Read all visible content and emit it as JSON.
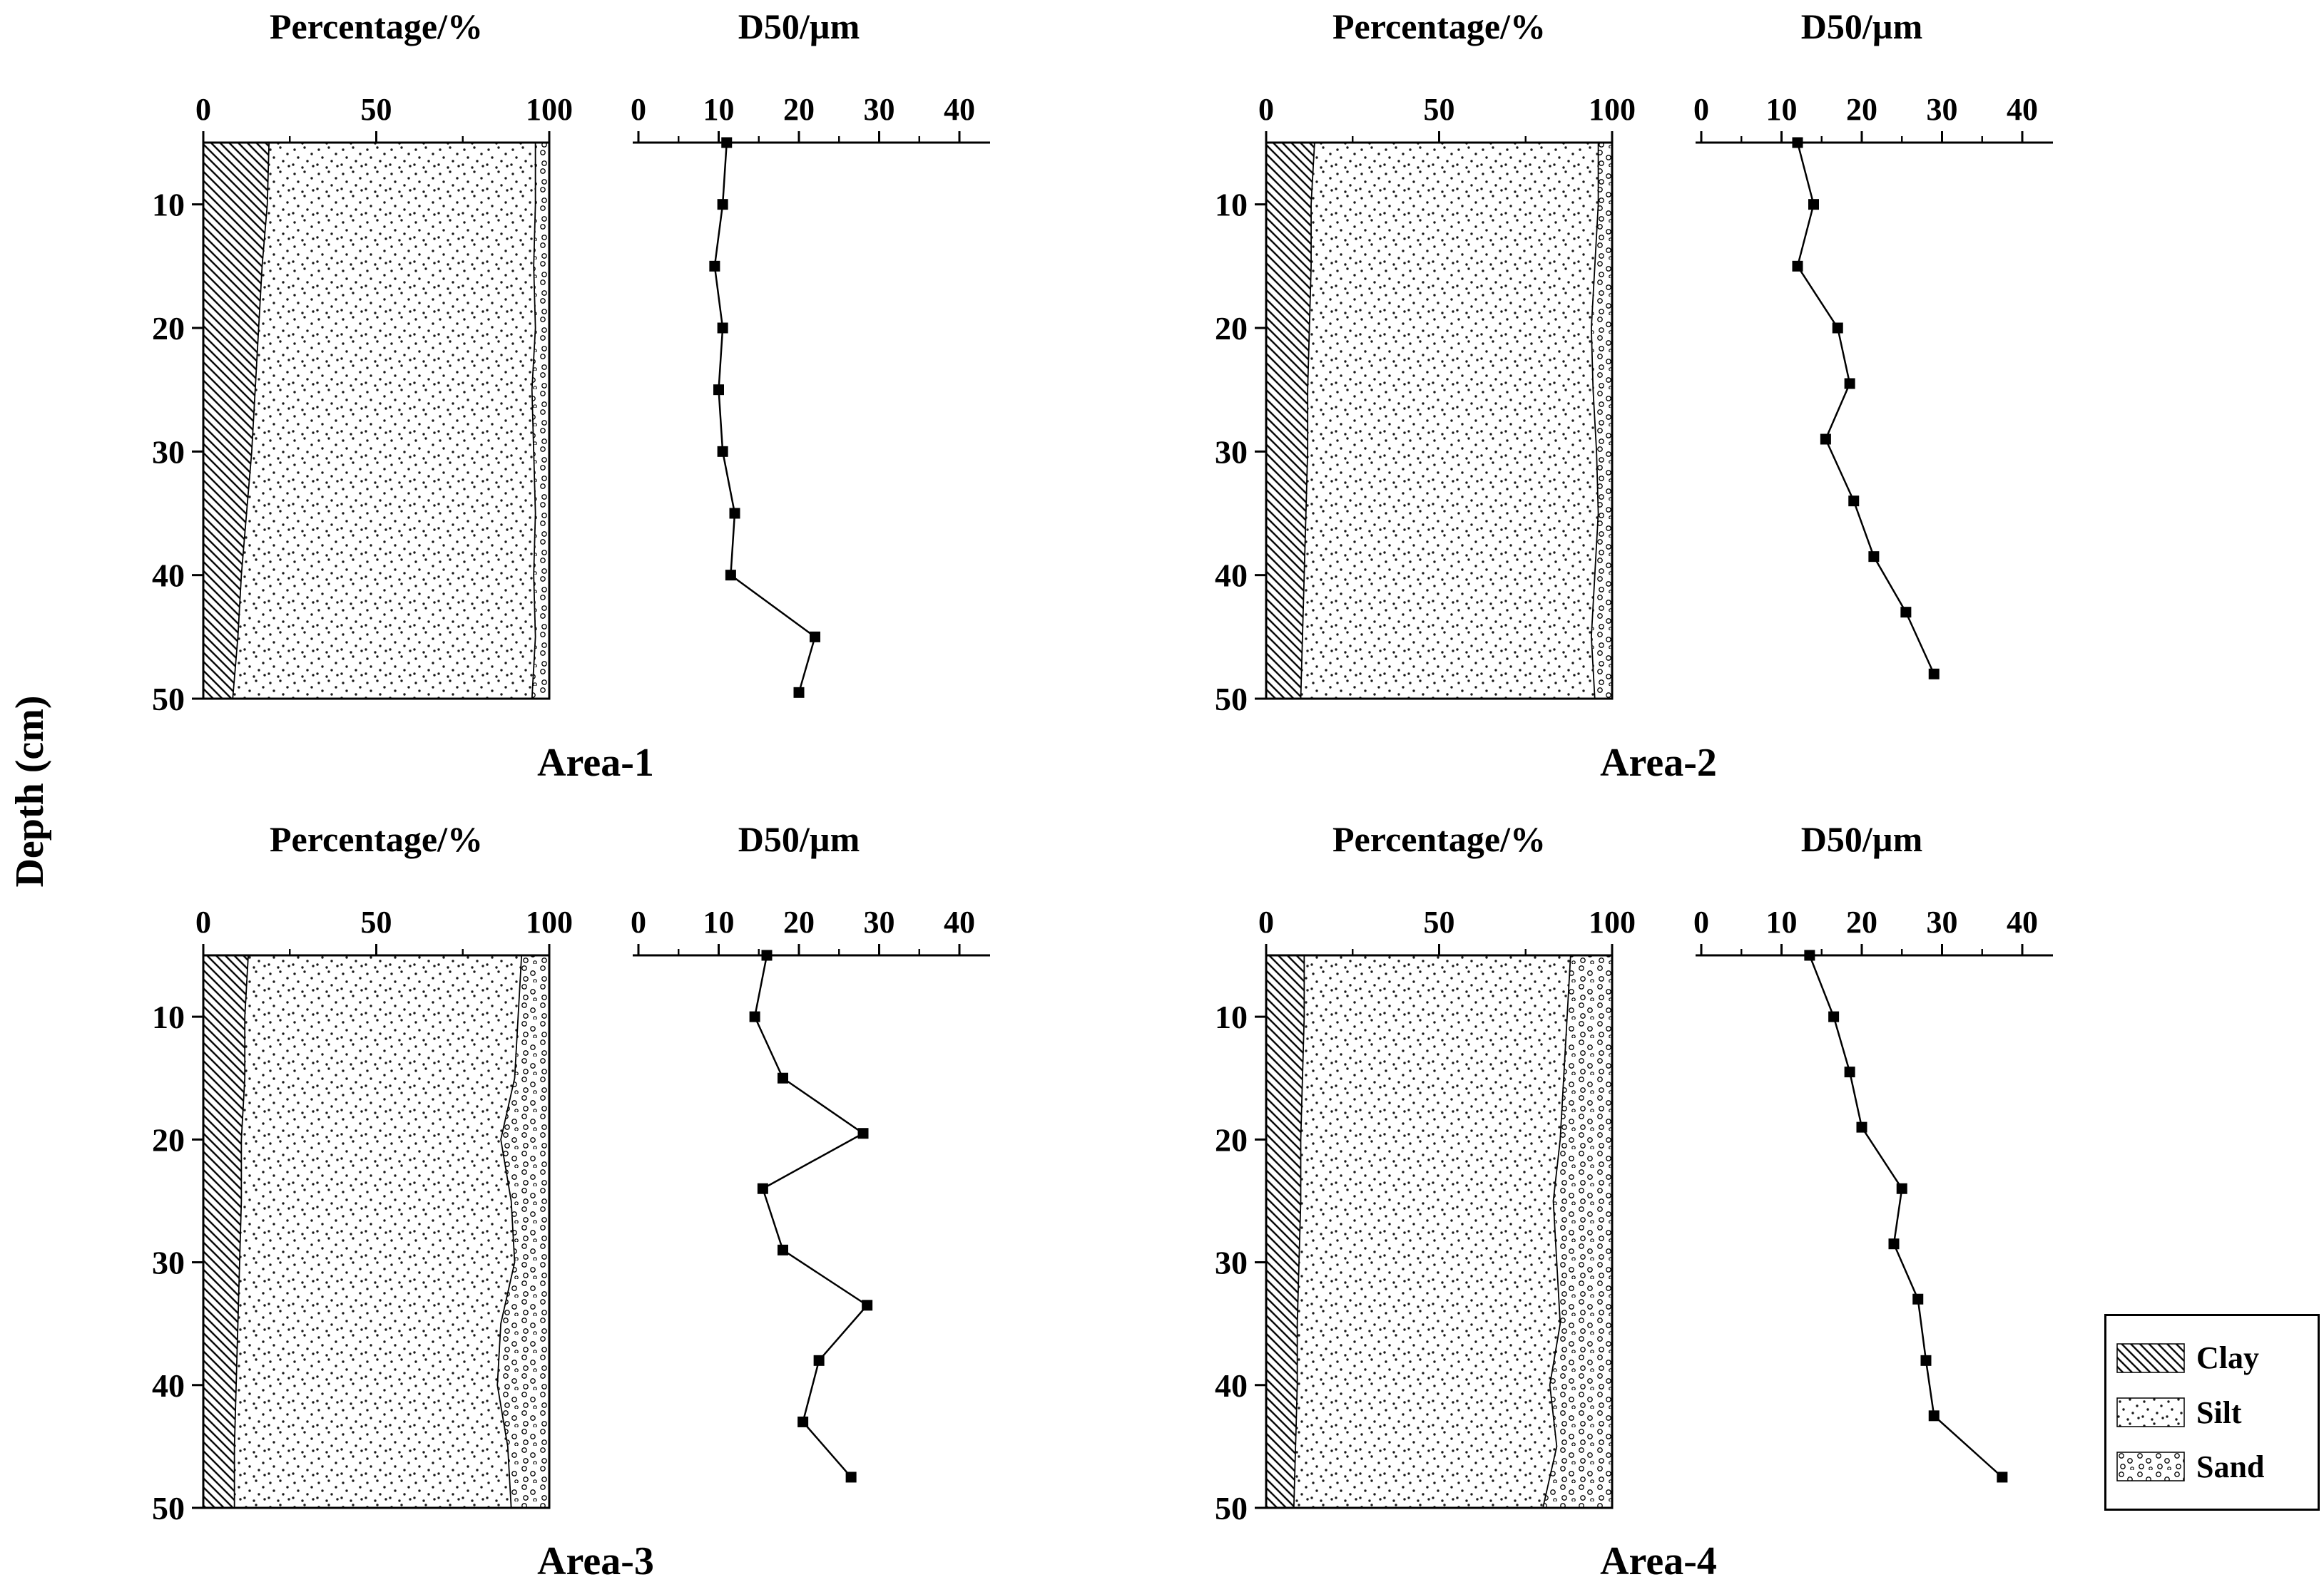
{
  "figure": {
    "depth_axis_label": "Depth (cm)",
    "depth_ticks": [
      10,
      20,
      30,
      40,
      50
    ],
    "depth_range_cm": [
      5,
      50
    ],
    "percentage_title": "Percentage/%",
    "percentage_major_ticks": [
      0,
      50,
      100
    ],
    "percentage_minor_ticks": [
      25,
      75
    ],
    "percentage_range": [
      0,
      100
    ],
    "d50_title": "D50/µm",
    "d50_major_ticks": [
      0,
      10,
      20,
      30,
      40
    ],
    "d50_minor_ticks": [
      5,
      15,
      25,
      35
    ],
    "d50_range": [
      0,
      40
    ],
    "line_color": "#000000",
    "marker": "square"
  },
  "legend": {
    "items": [
      {
        "label": "Clay",
        "pattern": "clay"
      },
      {
        "label": "Silt",
        "pattern": "silt"
      },
      {
        "label": "Sand",
        "pattern": "sand"
      }
    ]
  },
  "chart_data": [
    {
      "name": "area-1",
      "label": "Area-1",
      "composition": {
        "type": "area",
        "stack_order": [
          "clay",
          "silt",
          "sand"
        ],
        "unit": "%",
        "depths_cm": [
          5,
          10,
          15,
          20,
          25,
          30,
          35,
          40,
          45,
          50
        ],
        "clay_pct": [
          19,
          18.5,
          17,
          16,
          15,
          14,
          12.5,
          11,
          10,
          8.5
        ],
        "silt_pct": [
          77,
          77.5,
          78.5,
          80,
          80,
          81.5,
          83.5,
          84.5,
          86,
          86.5
        ],
        "sand_pct": [
          4,
          4,
          4.5,
          4,
          5,
          4.5,
          4,
          4.5,
          4,
          5
        ]
      },
      "d50": {
        "type": "line",
        "xlabel": "D50/µm",
        "depths_cm": [
          5,
          10,
          15,
          20,
          25,
          30,
          35,
          40,
          45,
          49.5
        ],
        "values_um": [
          11,
          10.5,
          9.5,
          10.5,
          10,
          10.5,
          12,
          11.5,
          22,
          20
        ]
      }
    },
    {
      "name": "area-2",
      "label": "Area-2",
      "composition": {
        "type": "area",
        "stack_order": [
          "clay",
          "silt",
          "sand"
        ],
        "unit": "%",
        "depths_cm": [
          5,
          10,
          15,
          20,
          25,
          30,
          35,
          40,
          45,
          50
        ],
        "clay_pct": [
          14,
          13,
          13,
          12.5,
          12,
          12,
          11.5,
          11,
          10.5,
          10
        ],
        "silt_pct": [
          82,
          83,
          82,
          81.5,
          82.5,
          83.5,
          84.5,
          84,
          83.5,
          85
        ],
        "sand_pct": [
          4,
          4,
          5,
          6,
          5.5,
          4.5,
          4,
          5,
          6,
          5
        ]
      },
      "d50": {
        "type": "line",
        "xlabel": "D50/µm",
        "depths_cm": [
          5,
          10,
          15,
          20,
          24.5,
          29,
          34,
          38.5,
          43,
          48
        ],
        "values_um": [
          12,
          14,
          12,
          17,
          18.5,
          15.5,
          19,
          21.5,
          25.5,
          29
        ]
      }
    },
    {
      "name": "area-3",
      "label": "Area-3",
      "composition": {
        "type": "area",
        "stack_order": [
          "clay",
          "silt",
          "sand"
        ],
        "unit": "%",
        "depths_cm": [
          5,
          10,
          15,
          20,
          25,
          30,
          35,
          40,
          45,
          50
        ],
        "clay_pct": [
          13,
          12,
          12,
          11,
          11,
          10.5,
          10,
          9.5,
          9,
          9
        ],
        "silt_pct": [
          79,
          79,
          78,
          75,
          78,
          79.5,
          76,
          75.5,
          79,
          80
        ],
        "sand_pct": [
          8,
          9,
          10,
          14,
          11,
          10,
          14,
          15,
          12,
          11
        ]
      },
      "d50": {
        "type": "line",
        "xlabel": "D50/µm",
        "depths_cm": [
          5,
          10,
          15,
          19.5,
          24,
          29,
          33.5,
          38,
          43,
          47.5
        ],
        "values_um": [
          16,
          14.5,
          18,
          28,
          15.5,
          18,
          28.5,
          22.5,
          20.5,
          26.5
        ]
      }
    },
    {
      "name": "area-4",
      "label": "Area-4",
      "composition": {
        "type": "area",
        "stack_order": [
          "clay",
          "silt",
          "sand"
        ],
        "unit": "%",
        "depths_cm": [
          5,
          10,
          15,
          20,
          25,
          30,
          35,
          40,
          45,
          50
        ],
        "clay_pct": [
          11,
          11,
          10.5,
          10,
          10,
          9.5,
          9,
          9,
          8.5,
          8
        ],
        "silt_pct": [
          77,
          76,
          75.5,
          75,
          73,
          74.5,
          76,
          73,
          75.5,
          72
        ],
        "sand_pct": [
          12,
          13,
          14,
          15,
          17,
          16,
          15,
          18,
          16,
          20
        ]
      },
      "d50": {
        "type": "line",
        "xlabel": "D50/µm",
        "depths_cm": [
          5,
          10,
          14.5,
          19,
          24,
          28.5,
          33,
          38,
          42.5,
          47.5
        ],
        "values_um": [
          13.5,
          16.5,
          18.5,
          20,
          25,
          24,
          27,
          28,
          29,
          37.5
        ]
      }
    }
  ]
}
